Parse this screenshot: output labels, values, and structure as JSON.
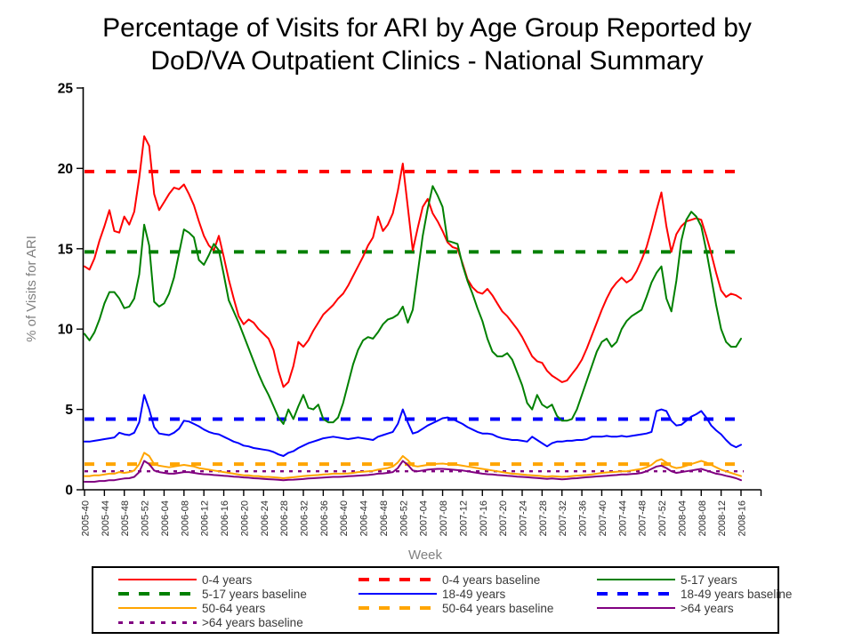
{
  "chart_data": {
    "type": "line",
    "title_lines": [
      "Percentage of Visits for ARI by Age Group Reported by",
      "DoD/VA Outpatient Clinics - National Summary"
    ],
    "xlabel": "Week",
    "ylabel": "% of Visits for ARI",
    "ylim": [
      0,
      25
    ],
    "y_ticks": [
      0,
      5,
      10,
      15,
      20,
      25
    ],
    "grid": false,
    "legend_position": "bottom",
    "x_tick_interval_weeks": 4,
    "x_tick_labels": [
      "2005-40",
      "2005-44",
      "2005-48",
      "2005-52",
      "2006-04",
      "2006-08",
      "2006-12",
      "2006-16",
      "2006-20",
      "2006-24",
      "2006-28",
      "2006-32",
      "2006-36",
      "2006-40",
      "2006-44",
      "2006-48",
      "2006-52",
      "2007-04",
      "2007-08",
      "2007-12",
      "2007-16",
      "2007-20",
      "2007-24",
      "2007-28",
      "2007-32",
      "2007-36",
      "2007-40",
      "2007-44",
      "2007-48",
      "2007-52",
      "2008-04",
      "2008-08",
      "2008-12",
      "2008-16"
    ],
    "series": [
      {
        "name": "0-4 years",
        "color": "#ff0000",
        "style": "solid",
        "values": [
          13.9,
          13.7,
          14.4,
          15.5,
          16.4,
          17.4,
          16.1,
          16.0,
          17.0,
          16.5,
          17.3,
          19.4,
          22.0,
          21.4,
          18.4,
          17.4,
          17.9,
          18.4,
          18.8,
          18.7,
          19.0,
          18.4,
          17.7,
          16.7,
          15.8,
          15.2,
          14.9,
          15.8,
          14.5,
          13.1,
          11.9,
          10.8,
          10.3,
          10.6,
          10.4,
          10.0,
          9.7,
          9.4,
          8.7,
          7.4,
          6.4,
          6.7,
          7.7,
          9.2,
          8.9,
          9.3,
          9.9,
          10.4,
          10.9,
          11.2,
          11.5,
          11.9,
          12.2,
          12.7,
          13.3,
          13.9,
          14.5,
          15.2,
          15.7,
          17.0,
          16.1,
          16.5,
          17.2,
          18.6,
          20.3,
          17.6,
          14.9,
          16.3,
          17.6,
          18.1,
          17.2,
          16.7,
          16.1,
          15.4,
          15.1,
          15.0,
          14.1,
          13.1,
          12.6,
          12.3,
          12.2,
          12.5,
          12.1,
          11.6,
          11.1,
          10.8,
          10.4,
          10.0,
          9.5,
          8.9,
          8.3,
          8.0,
          7.9,
          7.4,
          7.1,
          6.9,
          6.7,
          6.8,
          7.2,
          7.6,
          8.1,
          8.8,
          9.6,
          10.4,
          11.2,
          11.9,
          12.5,
          12.9,
          13.2,
          12.9,
          13.1,
          13.6,
          14.3,
          15.1,
          16.2,
          17.4,
          18.5,
          16.4,
          14.8,
          15.9,
          16.4,
          16.7,
          16.8,
          16.9,
          16.8,
          15.8,
          14.7,
          13.5,
          12.4,
          12.0,
          12.2,
          12.1,
          11.9
        ]
      },
      {
        "name": "5-17 years",
        "color": "#008000",
        "style": "solid",
        "values": [
          9.7,
          9.3,
          9.8,
          10.6,
          11.6,
          12.3,
          12.3,
          11.9,
          11.3,
          11.4,
          11.9,
          13.4,
          16.5,
          15.2,
          11.7,
          11.4,
          11.6,
          12.2,
          13.2,
          14.7,
          16.2,
          16.0,
          15.7,
          14.3,
          14.0,
          14.6,
          15.3,
          14.9,
          13.4,
          11.8,
          11.1,
          10.4,
          9.6,
          8.8,
          8.0,
          7.2,
          6.5,
          5.9,
          5.2,
          4.5,
          4.1,
          5.0,
          4.4,
          5.2,
          5.9,
          5.1,
          5.0,
          5.3,
          4.4,
          4.2,
          4.2,
          4.5,
          5.4,
          6.6,
          7.8,
          8.7,
          9.3,
          9.5,
          9.4,
          9.8,
          10.3,
          10.6,
          10.7,
          10.9,
          11.4,
          10.4,
          11.2,
          13.5,
          15.8,
          17.5,
          18.9,
          18.3,
          17.6,
          15.5,
          15.4,
          15.3,
          14.0,
          13.0,
          12.2,
          11.3,
          10.5,
          9.4,
          8.6,
          8.3,
          8.3,
          8.5,
          8.1,
          7.3,
          6.5,
          5.4,
          5.0,
          5.9,
          5.3,
          5.1,
          5.3,
          4.6,
          4.3,
          4.3,
          4.4,
          5.0,
          5.9,
          6.8,
          7.7,
          8.6,
          9.2,
          9.4,
          8.9,
          9.2,
          10.0,
          10.5,
          10.8,
          11.0,
          11.2,
          12.0,
          12.9,
          13.5,
          13.9,
          11.9,
          11.1,
          13.0,
          15.5,
          16.8,
          17.3,
          17.0,
          16.4,
          14.9,
          13.2,
          11.5,
          10.0,
          9.2,
          8.9,
          8.9,
          9.4
        ]
      },
      {
        "name": "18-49 years",
        "color": "#0000ff",
        "style": "solid",
        "values": [
          3.0,
          3.0,
          3.05,
          3.1,
          3.15,
          3.2,
          3.25,
          3.55,
          3.45,
          3.4,
          3.55,
          4.2,
          5.9,
          5.0,
          3.9,
          3.5,
          3.45,
          3.4,
          3.55,
          3.8,
          4.3,
          4.25,
          4.1,
          3.95,
          3.75,
          3.6,
          3.5,
          3.45,
          3.3,
          3.15,
          3.0,
          2.9,
          2.75,
          2.7,
          2.6,
          2.55,
          2.5,
          2.45,
          2.35,
          2.2,
          2.1,
          2.3,
          2.4,
          2.6,
          2.75,
          2.9,
          3.0,
          3.1,
          3.2,
          3.25,
          3.3,
          3.25,
          3.2,
          3.15,
          3.2,
          3.25,
          3.2,
          3.15,
          3.1,
          3.3,
          3.4,
          3.5,
          3.6,
          4.1,
          5.0,
          4.2,
          3.5,
          3.6,
          3.8,
          4.0,
          4.15,
          4.3,
          4.45,
          4.5,
          4.4,
          4.25,
          4.1,
          3.9,
          3.75,
          3.6,
          3.5,
          3.5,
          3.45,
          3.3,
          3.2,
          3.15,
          3.1,
          3.1,
          3.05,
          3.0,
          3.3,
          3.1,
          2.9,
          2.7,
          2.9,
          3.0,
          3.0,
          3.05,
          3.05,
          3.1,
          3.1,
          3.15,
          3.3,
          3.3,
          3.3,
          3.35,
          3.3,
          3.3,
          3.35,
          3.3,
          3.35,
          3.4,
          3.45,
          3.5,
          3.6,
          4.9,
          5.0,
          4.9,
          4.3,
          4.0,
          4.05,
          4.3,
          4.55,
          4.7,
          4.9,
          4.5,
          4.0,
          3.7,
          3.45,
          3.1,
          2.8,
          2.65,
          2.8
        ]
      },
      {
        "name": "50-64 years",
        "color": "#ffa500",
        "style": "solid",
        "values": [
          0.85,
          0.85,
          0.9,
          0.9,
          0.95,
          1.0,
          1.0,
          1.1,
          1.05,
          1.1,
          1.2,
          1.6,
          2.3,
          2.1,
          1.6,
          1.5,
          1.45,
          1.4,
          1.45,
          1.5,
          1.55,
          1.5,
          1.45,
          1.35,
          1.3,
          1.25,
          1.2,
          1.15,
          1.1,
          1.05,
          1.0,
          0.95,
          0.9,
          0.9,
          0.85,
          0.85,
          0.8,
          0.8,
          0.78,
          0.75,
          0.72,
          0.75,
          0.78,
          0.82,
          0.85,
          0.88,
          0.9,
          0.92,
          0.95,
          0.97,
          1.0,
          1.0,
          1.0,
          1.02,
          1.05,
          1.1,
          1.12,
          1.15,
          1.18,
          1.25,
          1.3,
          1.35,
          1.45,
          1.7,
          2.1,
          1.85,
          1.5,
          1.45,
          1.5,
          1.55,
          1.6,
          1.62,
          1.63,
          1.6,
          1.58,
          1.55,
          1.5,
          1.45,
          1.4,
          1.35,
          1.3,
          1.25,
          1.2,
          1.15,
          1.1,
          1.05,
          1.0,
          0.98,
          0.95,
          0.92,
          0.9,
          0.88,
          0.85,
          0.82,
          0.85,
          0.83,
          0.8,
          0.82,
          0.85,
          0.88,
          0.9,
          0.92,
          0.95,
          1.0,
          1.05,
          1.08,
          1.1,
          1.12,
          1.15,
          1.15,
          1.2,
          1.25,
          1.3,
          1.4,
          1.55,
          1.8,
          1.9,
          1.7,
          1.45,
          1.35,
          1.4,
          1.5,
          1.6,
          1.7,
          1.8,
          1.7,
          1.55,
          1.4,
          1.25,
          1.15,
          1.05,
          0.95,
          0.85
        ]
      },
      {
        "name": ">64 years",
        "color": "#800080",
        "style": "solid",
        "values": [
          0.5,
          0.5,
          0.5,
          0.55,
          0.55,
          0.6,
          0.6,
          0.65,
          0.7,
          0.72,
          0.8,
          1.1,
          1.8,
          1.6,
          1.2,
          1.1,
          1.05,
          1.0,
          1.0,
          1.05,
          1.1,
          1.1,
          1.05,
          1.0,
          0.97,
          0.95,
          0.92,
          0.9,
          0.87,
          0.85,
          0.82,
          0.8,
          0.77,
          0.75,
          0.72,
          0.7,
          0.68,
          0.66,
          0.64,
          0.62,
          0.6,
          0.62,
          0.63,
          0.65,
          0.67,
          0.7,
          0.72,
          0.74,
          0.76,
          0.78,
          0.8,
          0.8,
          0.82,
          0.84,
          0.86,
          0.88,
          0.9,
          0.92,
          0.95,
          1.0,
          1.02,
          1.05,
          1.1,
          1.35,
          1.8,
          1.55,
          1.2,
          1.15,
          1.2,
          1.25,
          1.28,
          1.3,
          1.3,
          1.28,
          1.25,
          1.22,
          1.2,
          1.15,
          1.1,
          1.05,
          1.0,
          0.97,
          0.95,
          0.92,
          0.9,
          0.87,
          0.85,
          0.82,
          0.8,
          0.78,
          0.75,
          0.73,
          0.7,
          0.68,
          0.7,
          0.68,
          0.65,
          0.67,
          0.7,
          0.72,
          0.75,
          0.78,
          0.8,
          0.83,
          0.85,
          0.87,
          0.9,
          0.92,
          0.95,
          0.95,
          0.98,
          1.0,
          1.05,
          1.15,
          1.3,
          1.45,
          1.5,
          1.35,
          1.15,
          1.05,
          1.1,
          1.15,
          1.2,
          1.25,
          1.3,
          1.2,
          1.1,
          1.0,
          0.95,
          0.87,
          0.8,
          0.72,
          0.6
        ]
      }
    ],
    "baselines": [
      {
        "name": "0-4 years baseline",
        "color": "#ff0000",
        "value": 19.8,
        "dash": "large"
      },
      {
        "name": "5-17 years baseline",
        "color": "#008000",
        "value": 14.8,
        "dash": "large"
      },
      {
        "name": "18-49 years baseline",
        "color": "#0000ff",
        "value": 4.4,
        "dash": "large"
      },
      {
        "name": "50-64 years baseline",
        "color": "#ffa500",
        "value": 1.6,
        "dash": "large"
      },
      {
        "name": ">64 years baseline",
        "color": "#800080",
        "value": 1.15,
        "dash": "small"
      }
    ],
    "legend": {
      "entries": [
        {
          "label": "0-4 years",
          "color": "#ff0000",
          "dash": "solid"
        },
        {
          "label": "0-4 years baseline",
          "color": "#ff0000",
          "dash": "dashed"
        },
        {
          "label": "5-17 years",
          "color": "#008000",
          "dash": "solid"
        },
        {
          "label": "5-17 years baseline",
          "color": "#008000",
          "dash": "dashed"
        },
        {
          "label": "18-49 years",
          "color": "#0000ff",
          "dash": "solid"
        },
        {
          "label": "18-49 years baseline",
          "color": "#0000ff",
          "dash": "dashed"
        },
        {
          "label": "50-64 years",
          "color": "#ffa500",
          "dash": "solid"
        },
        {
          "label": "50-64 years baseline",
          "color": "#ffa500",
          "dash": "dashed"
        },
        {
          "label": ">64 years",
          "color": "#800080",
          "dash": "solid"
        },
        {
          "label": ">64 years baseline",
          "color": "#800080",
          "dash": "dotted"
        }
      ]
    }
  }
}
